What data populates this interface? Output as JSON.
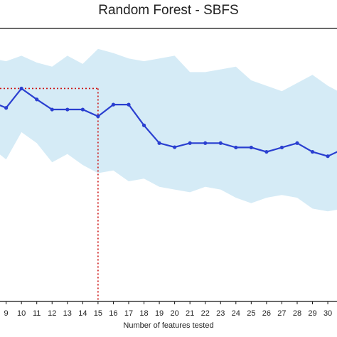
{
  "chart_data": {
    "type": "line",
    "title": "Random Forest - SBFS",
    "xlabel": "Number of features tested",
    "ylabel": "",
    "xlim": [
      8.6,
      30.6
    ],
    "ylim": [
      0,
      1
    ],
    "grid": false,
    "legend": "none",
    "x": [
      8,
      9,
      10,
      11,
      12,
      13,
      14,
      15,
      16,
      17,
      18,
      19,
      20,
      21,
      22,
      23,
      24,
      25,
      26,
      27,
      28,
      29,
      30,
      31
    ],
    "x_ticks": [
      "9",
      "10",
      "11",
      "12",
      "13",
      "14",
      "15",
      "16",
      "17",
      "18",
      "19",
      "20",
      "21",
      "22",
      "23",
      "24",
      "25",
      "26",
      "27",
      "28",
      "29",
      "30"
    ],
    "series": [
      {
        "values": [
          0.732,
          0.709,
          0.78,
          0.74,
          0.703,
          0.703,
          0.703,
          0.678,
          0.721,
          0.721,
          0.645,
          0.58,
          0.565,
          0.58,
          0.58,
          0.58,
          0.564,
          0.564,
          0.548,
          0.564,
          0.58,
          0.548,
          0.532,
          0.558
        ],
        "lower": [
          0.565,
          0.52,
          0.62,
          0.58,
          0.51,
          0.54,
          0.5,
          0.47,
          0.48,
          0.44,
          0.45,
          0.42,
          0.41,
          0.4,
          0.42,
          0.41,
          0.38,
          0.36,
          0.38,
          0.39,
          0.38,
          0.34,
          0.33,
          0.34
        ],
        "upper": [
          0.89,
          0.88,
          0.9,
          0.875,
          0.86,
          0.9,
          0.87,
          0.925,
          0.91,
          0.89,
          0.88,
          0.89,
          0.9,
          0.84,
          0.84,
          0.85,
          0.86,
          0.81,
          0.79,
          0.77,
          0.8,
          0.83,
          0.79,
          0.76
        ]
      }
    ],
    "reference_lines": {
      "x": 15,
      "y": 0.78
    },
    "colors": {
      "line": "#2a3fd0",
      "band": "#d5ebf6",
      "reference": "#cc1111",
      "axis": "#111111"
    }
  }
}
